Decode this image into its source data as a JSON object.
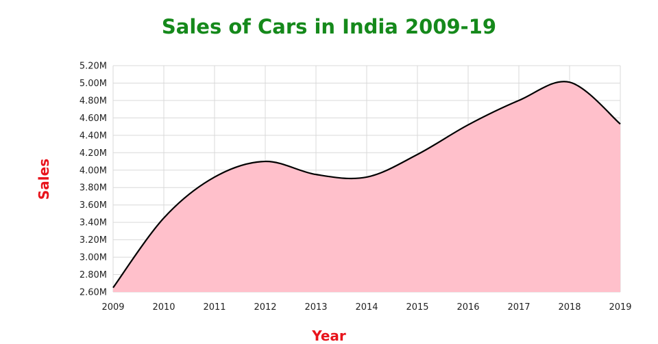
{
  "chart_data": {
    "type": "area",
    "title": "Sales of Cars in India 2009-19",
    "xlabel": "Year",
    "ylabel": "Sales",
    "x": [
      2009,
      2010,
      2011,
      2012,
      2013,
      2014,
      2015,
      2016,
      2017,
      2018,
      2019
    ],
    "x_tick_labels": [
      "2009",
      "2010",
      "2011",
      "2012",
      "2013",
      "2014",
      "2015",
      "2016",
      "2017",
      "2018",
      "2019"
    ],
    "y_tick_labels": [
      "2.60M",
      "2.80M",
      "3.00M",
      "3.20M",
      "3.40M",
      "3.60M",
      "3.80M",
      "4.00M",
      "4.20M",
      "4.40M",
      "4.60M",
      "4.80M",
      "5.00M",
      "5.20M"
    ],
    "ylim": [
      2.6,
      5.2
    ],
    "xlim": [
      2009,
      2019
    ],
    "y_unit": "M",
    "series": [
      {
        "values": [
          2.65,
          3.45,
          3.92,
          4.1,
          3.95,
          3.92,
          4.18,
          4.52,
          4.8,
          5.01,
          4.53
        ]
      }
    ],
    "grid": true,
    "colors": {
      "fill": "#ffc0cb",
      "line": "#000000",
      "title": "#15891b",
      "axis_title": "#e8141c",
      "grid": "#d9d9d9"
    }
  }
}
